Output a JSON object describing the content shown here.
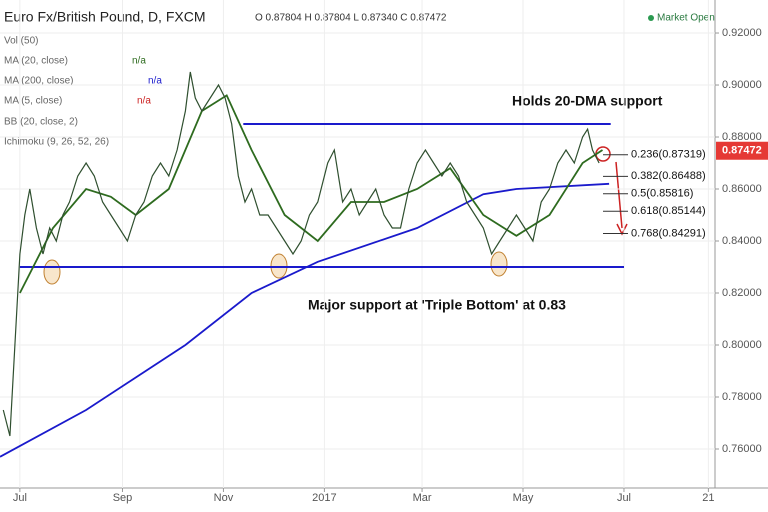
{
  "header": {
    "ohlc": "O 0.87804 H 0.87804 L 0.87340 C 0.87472",
    "status": "Market Open"
  },
  "indicators": [
    {
      "name": "Vol (50)"
    },
    {
      "name": "MA (5, close)",
      "value": "n/a"
    },
    {
      "name": "BB (20, close, 2)"
    },
    {
      "name": "Ichimoku (9, 26, 52, 26)"
    }
  ],
  "ma_status": [
    "n/a",
    "n/a"
  ],
  "chart_data": {
    "type": "line",
    "xlim": [
      -12,
      420
    ],
    "ylim": [
      0.745,
      0.9327
    ],
    "xticks": [
      {
        "value": 0,
        "label": "Jul"
      },
      {
        "value": 62,
        "label": "Sep"
      },
      {
        "value": 123,
        "label": "Nov"
      },
      {
        "value": 184,
        "label": "2017"
      },
      {
        "value": 243,
        "label": "Mar"
      },
      {
        "value": 304,
        "label": "May"
      },
      {
        "value": 365,
        "label": "Jul"
      },
      {
        "value": 416,
        "label": "21"
      }
    ],
    "yticks": [
      {
        "value": 0.76,
        "label": "0.76000"
      },
      {
        "value": 0.78,
        "label": "0.78000"
      },
      {
        "value": 0.8,
        "label": "0.80000"
      },
      {
        "value": 0.82,
        "label": "0.82000"
      },
      {
        "value": 0.84,
        "label": "0.84000"
      },
      {
        "value": 0.86,
        "label": "0.86000"
      },
      {
        "value": 0.88,
        "label": "0.88000"
      },
      {
        "value": 0.9,
        "label": "0.90000"
      },
      {
        "value": 0.92,
        "label": "0.92000"
      }
    ],
    "series": [
      {
        "name": "Euro Fx/British Pound, D, FXCM",
        "color": "#2f4f2f",
        "x": [
          -10,
          -6,
          -3,
          0,
          3,
          6,
          10,
          14,
          18,
          22,
          26,
          30,
          35,
          40,
          45,
          50,
          55,
          60,
          65,
          70,
          75,
          80,
          85,
          90,
          95,
          100,
          103,
          106,
          110,
          115,
          120,
          124,
          128,
          132,
          136,
          140,
          145,
          150,
          155,
          160,
          165,
          170,
          175,
          180,
          186,
          190,
          195,
          200,
          205,
          210,
          215,
          220,
          225,
          230,
          235,
          240,
          245,
          250,
          255,
          260,
          265,
          270,
          275,
          280,
          285,
          290,
          295,
          300,
          305,
          310,
          315,
          320,
          325,
          330,
          335,
          340,
          343,
          346,
          350
        ],
        "values": [
          0.775,
          0.765,
          0.8,
          0.835,
          0.85,
          0.86,
          0.845,
          0.835,
          0.845,
          0.84,
          0.85,
          0.855,
          0.865,
          0.87,
          0.865,
          0.855,
          0.85,
          0.845,
          0.84,
          0.85,
          0.855,
          0.865,
          0.87,
          0.865,
          0.875,
          0.89,
          0.905,
          0.895,
          0.89,
          0.895,
          0.9,
          0.895,
          0.885,
          0.865,
          0.855,
          0.86,
          0.85,
          0.85,
          0.845,
          0.84,
          0.835,
          0.84,
          0.85,
          0.855,
          0.87,
          0.875,
          0.855,
          0.86,
          0.85,
          0.855,
          0.86,
          0.85,
          0.845,
          0.845,
          0.86,
          0.87,
          0.875,
          0.87,
          0.865,
          0.87,
          0.865,
          0.855,
          0.85,
          0.845,
          0.835,
          0.84,
          0.845,
          0.85,
          0.845,
          0.84,
          0.855,
          0.86,
          0.87,
          0.875,
          0.87,
          0.88,
          0.883,
          0.875,
          0.87
        ]
      },
      {
        "name": "MA (20, close)",
        "color": "#2e6b1f",
        "x": [
          0,
          20,
          40,
          55,
          70,
          90,
          110,
          125,
          140,
          160,
          180,
          200,
          220,
          240,
          260,
          280,
          300,
          320,
          340,
          352
        ],
        "values": [
          0.82,
          0.845,
          0.86,
          0.857,
          0.85,
          0.86,
          0.89,
          0.896,
          0.875,
          0.85,
          0.84,
          0.855,
          0.855,
          0.86,
          0.868,
          0.85,
          0.842,
          0.85,
          0.87,
          0.875
        ]
      },
      {
        "name": "MA (200, close)",
        "color": "#1a1acc",
        "x": [
          -12,
          40,
          100,
          140,
          180,
          240,
          280,
          300,
          356
        ],
        "values": [
          0.757,
          0.775,
          0.8,
          0.82,
          0.832,
          0.845,
          0.858,
          0.86,
          0.862
        ]
      }
    ],
    "trendlines": [
      {
        "color": "#1a1acc",
        "x": [
          135,
          357
        ],
        "values": [
          0.885,
          0.885
        ]
      },
      {
        "color": "#1a1acc",
        "x": [
          0,
          365
        ],
        "values": [
          0.83,
          0.83
        ]
      }
    ],
    "fib_levels": [
      {
        "value": 0.87319,
        "label": "0.236(0.87319)"
      },
      {
        "value": 0.86488,
        "label": "0.382(0.86488)"
      },
      {
        "value": 0.85816,
        "label": "0.5(0.85816)"
      },
      {
        "value": 0.85144,
        "label": "0.618(0.85144)"
      },
      {
        "value": 0.84291,
        "label": "0.768(0.84291)"
      }
    ],
    "last_price": 0.87472,
    "annotations": [
      "Holds 20-DMA support",
      "Major support at 'Triple Bottom' at 0.83"
    ]
  }
}
